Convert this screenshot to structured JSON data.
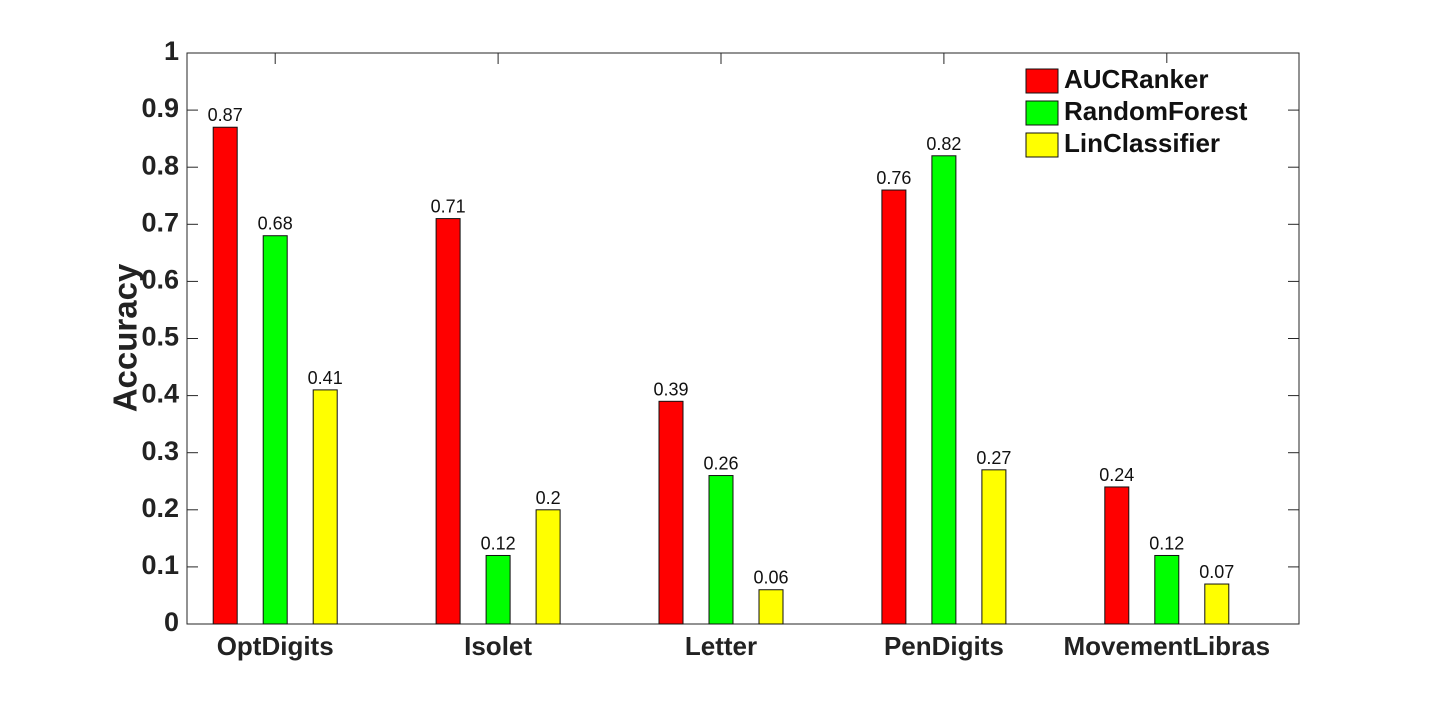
{
  "chart_data": {
    "type": "bar",
    "ylabel": "Accuracy",
    "xlabel": "",
    "title": "",
    "ylim": [
      0,
      1
    ],
    "yticks": [
      0,
      0.1,
      0.2,
      0.3,
      0.4,
      0.5,
      0.6,
      0.7,
      0.8,
      0.9,
      1
    ],
    "ytick_labels": [
      "0",
      "0.1",
      "0.2",
      "0.3",
      "0.4",
      "0.5",
      "0.6",
      "0.7",
      "0.8",
      "0.9",
      "1"
    ],
    "categories": [
      "OptDigits",
      "Isolet",
      "Letter",
      "PenDigits",
      "MovementLibras"
    ],
    "series": [
      {
        "name": "AUCRanker",
        "color": "#ff0000",
        "values": [
          0.87,
          0.71,
          0.39,
          0.76,
          0.24
        ],
        "labels": [
          "0.87",
          "0.71",
          "0.39",
          "0.76",
          "0.24"
        ]
      },
      {
        "name": "RandomForest",
        "color": "#00ff00",
        "values": [
          0.68,
          0.12,
          0.26,
          0.82,
          0.12
        ],
        "labels": [
          "0.68",
          "0.12",
          "0.26",
          "0.82",
          "0.12"
        ]
      },
      {
        "name": "LinClassifier",
        "color": "#ffff00",
        "values": [
          0.41,
          0.2,
          0.06,
          0.27,
          0.07
        ],
        "labels": [
          "0.41",
          "0.2",
          "0.06",
          "0.27",
          "0.07"
        ]
      }
    ],
    "legend_position": "top-right",
    "grid": false
  }
}
